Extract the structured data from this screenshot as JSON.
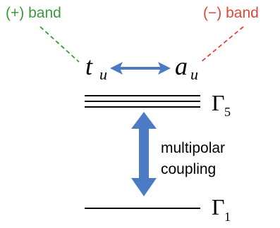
{
  "labels": {
    "plus_band": "(+) band",
    "minus_band": "(−) band",
    "t_base": "t",
    "t_sub": "u",
    "a_base": "a",
    "a_sub": "u",
    "gamma5_base": "Γ",
    "gamma5_sub": "5",
    "gamma1_base": "Γ",
    "gamma1_sub": "1",
    "coupling_line1": "multipolar",
    "coupling_line2": "coupling"
  },
  "colors": {
    "plus": "#3a9a3a",
    "minus": "#e0463a",
    "arrow": "#4a7bc4",
    "line": "#000000",
    "text": "#000000"
  }
}
